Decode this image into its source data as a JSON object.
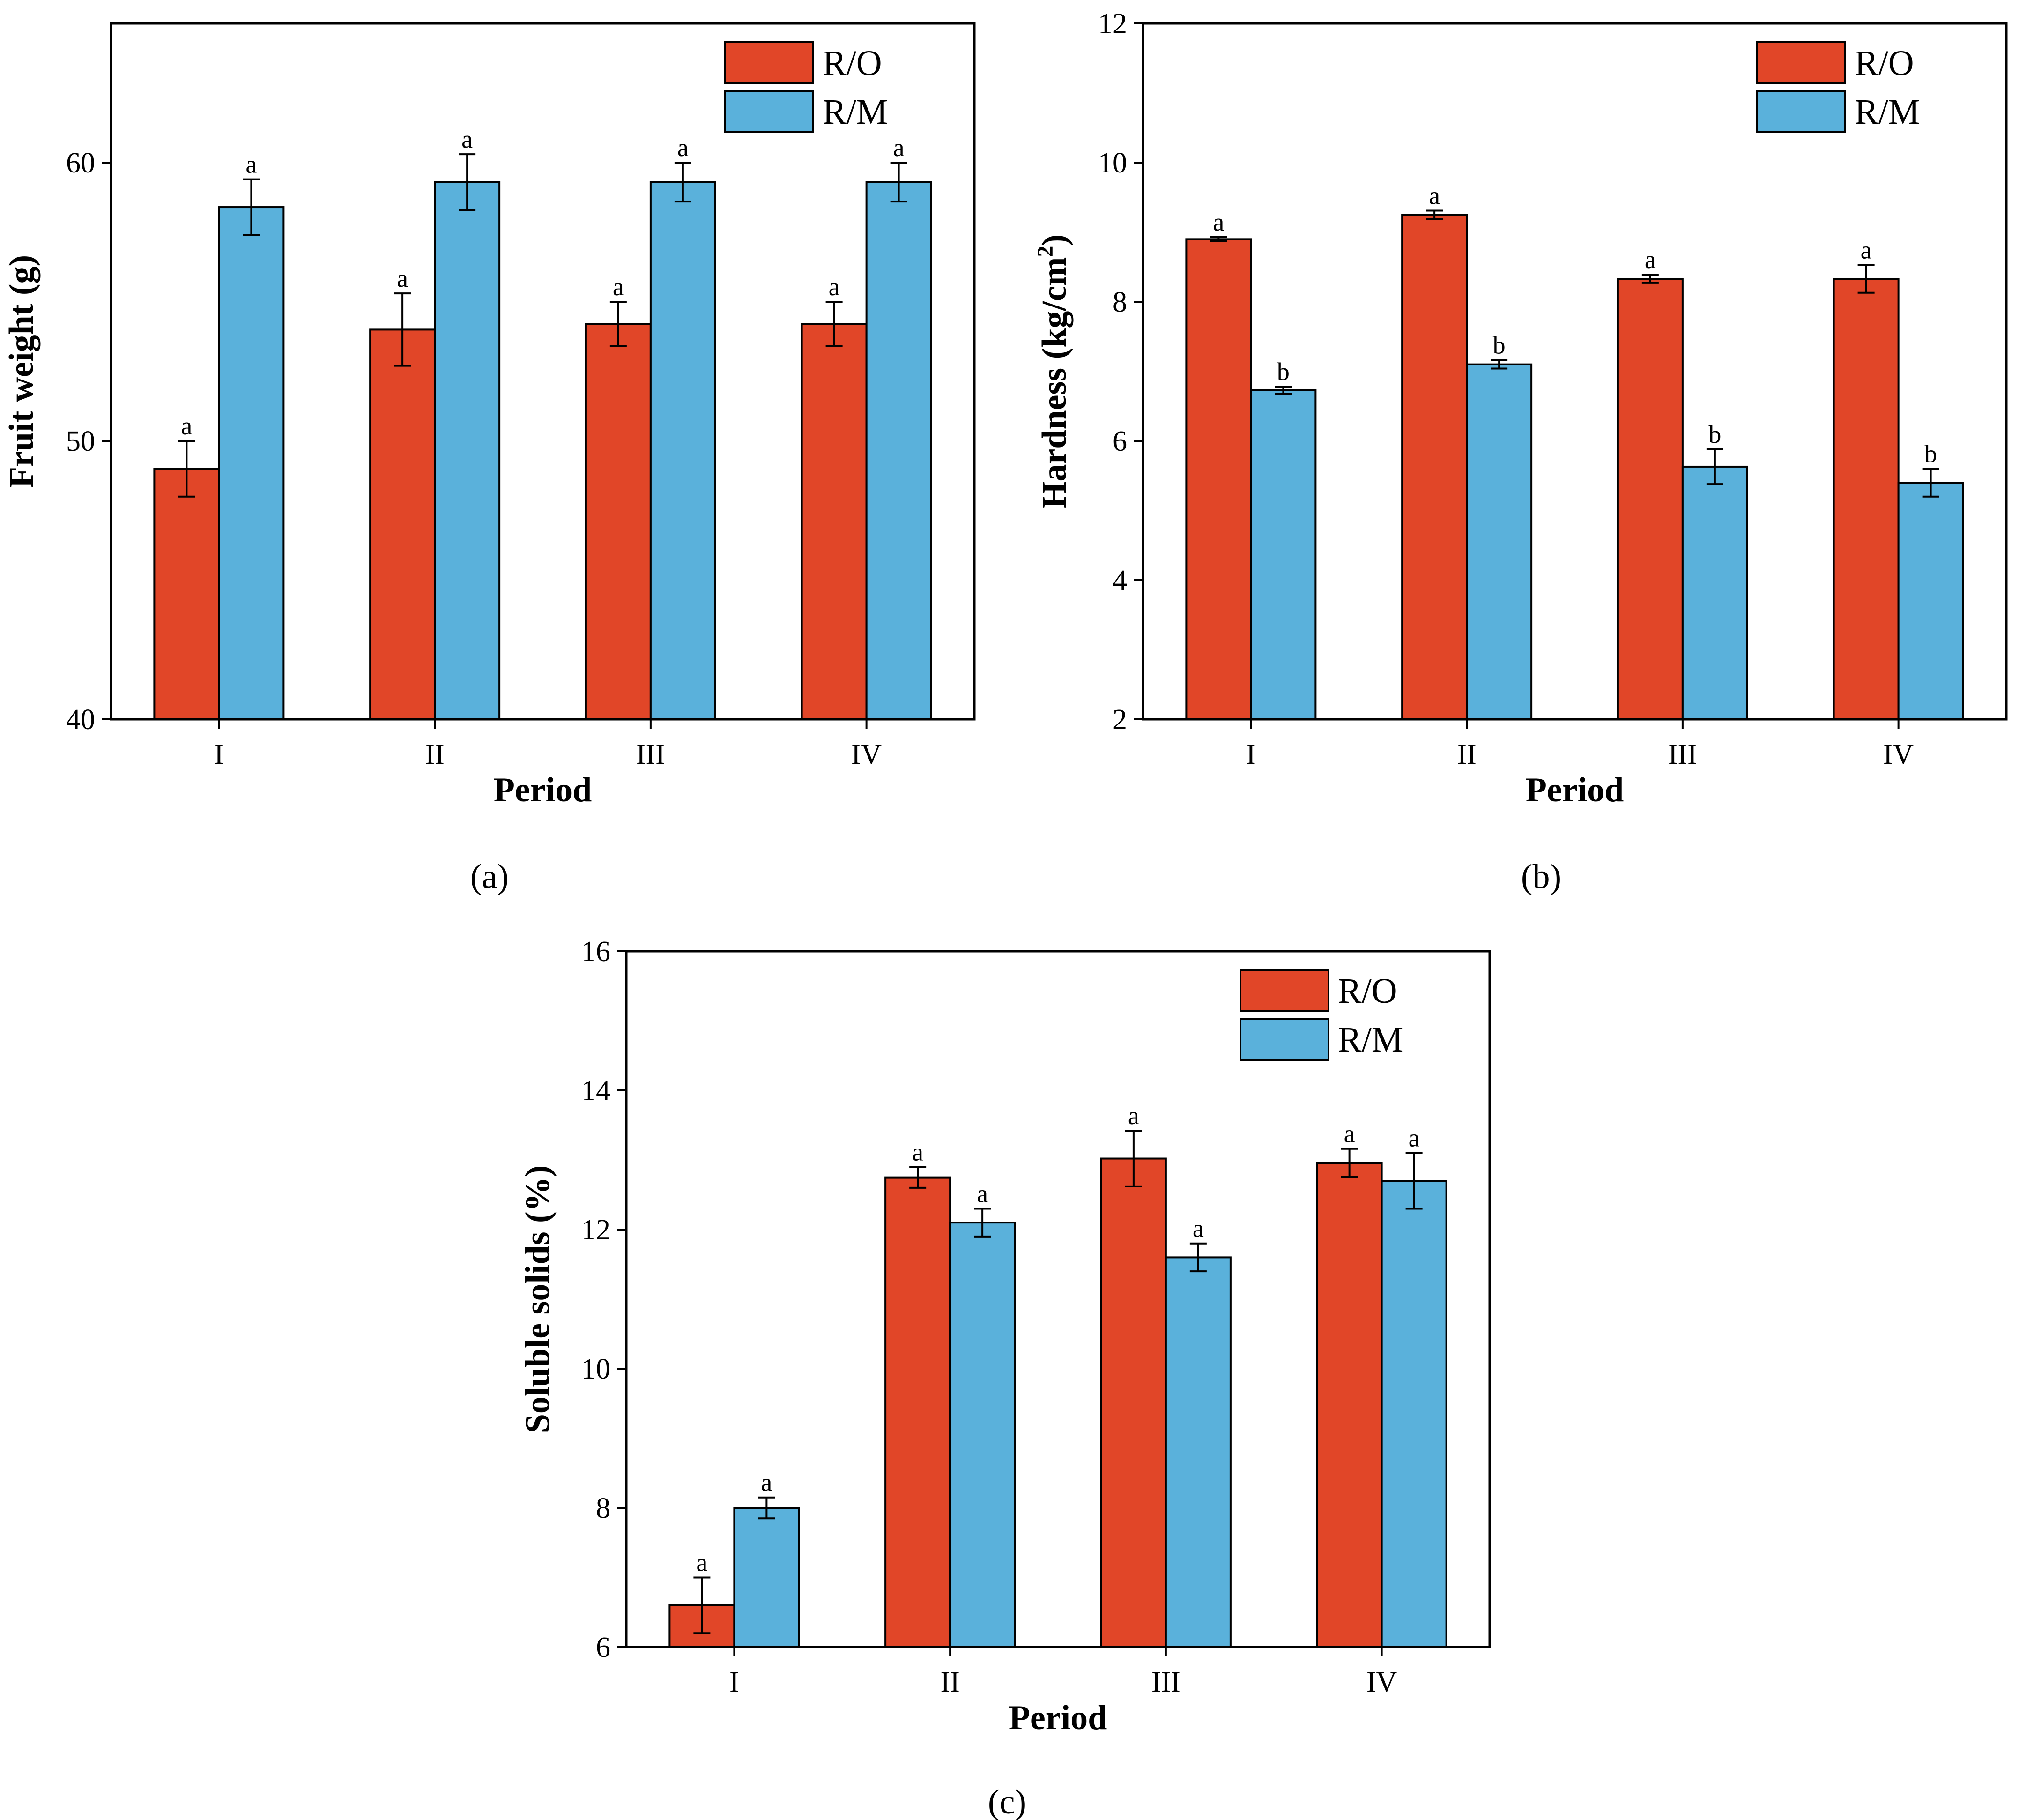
{
  "colors": {
    "ro": "#E14628",
    "rm": "#5AB1DB"
  },
  "chart_data": [
    {
      "panel_label": "(a)",
      "type": "bar",
      "xlabel": "Period",
      "ylabel": "Fruit weight (g)",
      "ylim": [
        40,
        65
      ],
      "yticks": [
        40,
        50,
        60
      ],
      "categories": [
        "I",
        "II",
        "III",
        "IV"
      ],
      "series": [
        {
          "name": "R/O",
          "values": [
            49.0,
            54.0,
            54.2,
            54.2
          ],
          "errors": [
            1.0,
            1.3,
            0.8,
            0.8
          ],
          "labels": [
            "a",
            "a",
            "a",
            "a"
          ]
        },
        {
          "name": "R/M",
          "values": [
            58.4,
            59.3,
            59.3,
            59.3
          ],
          "errors": [
            1.0,
            1.0,
            0.7,
            0.7
          ],
          "labels": [
            "a",
            "a",
            "a",
            "a"
          ]
        }
      ],
      "legend": "top-right",
      "grid": false
    },
    {
      "panel_label": "(b)",
      "type": "bar",
      "xlabel": "Period",
      "ylabel": "Hardness (kg/cm",
      "ylabel_sup": "2",
      "ylabel_end": ")",
      "ylim": [
        2,
        12
      ],
      "yticks": [
        2,
        4,
        6,
        8,
        10,
        12
      ],
      "categories": [
        "I",
        "II",
        "III",
        "IV"
      ],
      "series": [
        {
          "name": "R/O",
          "values": [
            8.9,
            9.25,
            8.33,
            8.33
          ],
          "errors": [
            0.03,
            0.06,
            0.06,
            0.2
          ],
          "labels": [
            "a",
            "a",
            "a",
            "a"
          ]
        },
        {
          "name": "R/M",
          "values": [
            6.73,
            7.1,
            5.63,
            5.4
          ],
          "errors": [
            0.05,
            0.06,
            0.25,
            0.2
          ],
          "labels": [
            "b",
            "b",
            "b",
            "b"
          ]
        }
      ],
      "legend": "top-right",
      "grid": false
    },
    {
      "panel_label": "(c)",
      "type": "bar",
      "xlabel": "Period",
      "ylabel": "Soluble solids (%)",
      "ylim": [
        6,
        16
      ],
      "yticks": [
        6,
        8,
        10,
        12,
        14,
        16
      ],
      "categories": [
        "I",
        "II",
        "III",
        "IV"
      ],
      "series": [
        {
          "name": "R/O",
          "values": [
            6.6,
            12.75,
            13.02,
            12.96
          ],
          "errors": [
            0.4,
            0.15,
            0.4,
            0.2
          ],
          "labels": [
            "a",
            "a",
            "a",
            "a"
          ]
        },
        {
          "name": "R/M",
          "values": [
            8.0,
            12.1,
            11.6,
            12.7
          ],
          "errors": [
            0.15,
            0.2,
            0.2,
            0.4
          ],
          "labels": [
            "a",
            "a",
            "a",
            "a"
          ]
        }
      ],
      "legend": "top-right",
      "grid": false
    }
  ]
}
